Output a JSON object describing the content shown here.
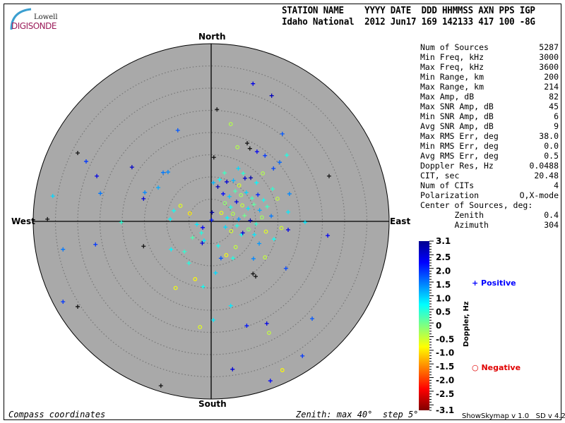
{
  "logo": {
    "line1": "Lowell",
    "line2": "DIGISONDE"
  },
  "header": {
    "labels": "STATION NAME    YYYY DATE  DDD HHMMSS AXN PPS IGP",
    "values": "Idaho National  2012 Jun17 169 142133 417 100 -8G"
  },
  "stats": [
    {
      "label": "Num of Sources",
      "value": "5287"
    },
    {
      "label": "Min Freq, kHz",
      "value": "3000"
    },
    {
      "label": "Max Freq, kHz",
      "value": "3600"
    },
    {
      "label": "Min Range, km",
      "value": "200"
    },
    {
      "label": "Max Range, km",
      "value": "214"
    },
    {
      "label": "Max Amp, dB",
      "value": "82"
    },
    {
      "label": "Max SNR Amp, dB",
      "value": "45"
    },
    {
      "label": "Min SNR Amp, dB",
      "value": "6"
    },
    {
      "label": "Avg SNR Amp, dB",
      "value": "9"
    },
    {
      "label": "Max RMS Err, deg",
      "value": "38.0"
    },
    {
      "label": "Min RMS Err, deg",
      "value": "0.0"
    },
    {
      "label": "Avg RMS Err, deg",
      "value": "0.5"
    },
    {
      "label": "Doppler Res, Hz",
      "value": "0.0488"
    },
    {
      "label": "CIT, sec",
      "value": "20.48"
    },
    {
      "label": "Num of CITs",
      "value": "4"
    },
    {
      "label": "Polarization",
      "value": "O,X-mode"
    },
    {
      "label": "Center of Sources, deg:",
      "value": ""
    },
    {
      "label": "       Zenith",
      "value": "0.4"
    },
    {
      "label": "       Azimuth",
      "value": "304"
    }
  ],
  "footer": {
    "left": "Compass coordinates",
    "right": "Zenith: max 40°  step 5°",
    "version": "ShowSkymap v 1.0   SD v 4.2"
  },
  "chart_data": {
    "type": "scatter",
    "projection": "polar-skymap",
    "compass_labels": {
      "north": "North",
      "south": "South",
      "east": "East",
      "west": "West"
    },
    "zenith_max_deg": 40,
    "zenith_step_deg": 5,
    "grid": true,
    "point_coords": "east/north zenith components, deg",
    "colorbar": {
      "label": "Doppler, Hz",
      "range": [
        -3.1,
        3.1
      ],
      "ticks": [
        "3.1",
        "2.5",
        "2.0",
        "1.5",
        "1.0",
        "0.5",
        "0",
        "-0.5",
        "-1.0",
        "-1.5",
        "-2.0",
        "-2.5",
        "-3.1"
      ],
      "colors": [
        "#00008f",
        "#0000ff",
        "#0080ff",
        "#00ffff",
        "#80ff80",
        "#ffff00",
        "#ff8000",
        "#ff0000",
        "#800000"
      ]
    },
    "legend": {
      "positive": "Positive",
      "negative": "Negative",
      "positive_color": "#0000ff",
      "negative_color": "#e00000"
    },
    "points": [
      [
        9.4,
        31,
        2.5
      ],
      [
        13.6,
        28.3,
        2.8
      ],
      [
        1.3,
        25.2,
        null
      ],
      [
        -7.5,
        20.5,
        1.8
      ],
      [
        16,
        19.7,
        1.8
      ],
      [
        4.4,
        21.9,
        -0.3
      ],
      [
        -30,
        15.4,
        null
      ],
      [
        -28.1,
        13.5,
        2.0
      ],
      [
        -17.8,
        12.2,
        2.7
      ],
      [
        -10.8,
        11,
        1.6
      ],
      [
        -9.7,
        11.1,
        1.5
      ],
      [
        -25.7,
        10.2,
        2.5
      ],
      [
        -35.6,
        5.7,
        1.0
      ],
      [
        -24.9,
        6.3,
        1.6
      ],
      [
        -14.9,
        6.5,
        1.5
      ],
      [
        -15.2,
        5.1,
        2.6
      ],
      [
        -11.9,
        7.6,
        1.3
      ],
      [
        -36.8,
        0.5,
        null
      ],
      [
        -20.2,
        -0.2,
        0.5
      ],
      [
        -9.2,
        0.5,
        0.8
      ],
      [
        -26,
        -5.2,
        2.0
      ],
      [
        -33.3,
        -6.3,
        1.6
      ],
      [
        -15.2,
        -5.6,
        null
      ],
      [
        -33.3,
        -18.1,
        2.0
      ],
      [
        -30,
        -19.2,
        null
      ],
      [
        -11.3,
        -37,
        null
      ],
      [
        4.8,
        -33.3,
        2.6
      ],
      [
        13.3,
        -35.9,
        2.3
      ],
      [
        16,
        -33.5,
        -0.8
      ],
      [
        20.5,
        -30.3,
        2.0
      ],
      [
        22.7,
        -21.9,
        1.8
      ],
      [
        12.5,
        -23,
        2.5
      ],
      [
        16.8,
        -10.6,
        1.9
      ],
      [
        10,
        -12.4,
        null
      ],
      [
        9.4,
        -11.8,
        null
      ],
      [
        26.2,
        -3.2,
        2.4
      ],
      [
        17.3,
        -1.9,
        2.5
      ],
      [
        21.1,
        -0.2,
        0.9
      ],
      [
        17.3,
        2.1,
        0.9
      ],
      [
        17.6,
        6.2,
        1.5
      ],
      [
        26.5,
        10.2,
        null
      ],
      [
        17,
        14.9,
        0.6
      ],
      [
        15.4,
        13.3,
        1.7
      ],
      [
        12.1,
        14.8,
        2.0
      ],
      [
        14,
        11.9,
        1.9
      ],
      [
        10.3,
        15.7,
        2.4
      ],
      [
        8.1,
        17.6,
        null
      ],
      [
        8.7,
        16.4,
        null
      ],
      [
        0.6,
        14.4,
        null
      ],
      [
        5.9,
        16.7,
        -0.3
      ],
      [
        -2,
        -4.9,
        2.6
      ],
      [
        2.2,
        -8.3,
        1.8
      ],
      [
        4.9,
        -8.3,
        0.6
      ],
      [
        6.8,
        -3.0,
        0.7
      ],
      [
        9.5,
        -8.4,
        1.5
      ],
      [
        12.1,
        -8.1,
        -0.4
      ],
      [
        0.2,
        2.0,
        3.0
      ],
      [
        0.1,
        0.3,
        2.2
      ],
      [
        -1.9,
        -1.4,
        2.4
      ],
      [
        1.5,
        7.8,
        2.8
      ],
      [
        3.5,
        8.9,
        2.6
      ],
      [
        5.0,
        9.2,
        1.2
      ],
      [
        6.3,
        8.1,
        -0.5
      ],
      [
        7.6,
        9.7,
        2.7
      ],
      [
        8.9,
        9.8,
        2.9
      ],
      [
        10.2,
        8.7,
        0.8
      ],
      [
        2.7,
        6.2,
        2.3
      ],
      [
        4.1,
        5.6,
        1.1
      ],
      [
        5.4,
        6.8,
        0.3
      ],
      [
        6.7,
        5.9,
        -0.2
      ],
      [
        7.9,
        6.5,
        1.0
      ],
      [
        9.2,
        5.2,
        0.4
      ],
      [
        10.5,
        6.0,
        2.1
      ],
      [
        11.8,
        4.8,
        0.7
      ],
      [
        3.1,
        4.1,
        -0.1
      ],
      [
        4.4,
        3.2,
        0.6
      ],
      [
        5.7,
        4.4,
        2.5
      ],
      [
        7.0,
        3.6,
        -0.4
      ],
      [
        8.3,
        2.9,
        0.9
      ],
      [
        9.6,
        3.8,
        0.2
      ],
      [
        10.9,
        2.5,
        1.3
      ],
      [
        2.3,
        1.9,
        -0.6
      ],
      [
        3.6,
        0.8,
        0.8
      ],
      [
        4.9,
        1.7,
        -0.3
      ],
      [
        6.2,
        0.5,
        1.4
      ],
      [
        7.5,
        1.3,
        0.1
      ],
      [
        8.8,
        0.2,
        2.8
      ],
      [
        10.1,
        -0.6,
        0.5
      ],
      [
        11.4,
        0.9,
        -0.2
      ],
      [
        3.2,
        -1.3,
        1.0
      ],
      [
        4.5,
        -2.2,
        -0.5
      ],
      [
        5.8,
        -1.0,
        0.6
      ],
      [
        7.1,
        -2.6,
        2.6
      ],
      [
        8.4,
        -1.8,
        -0.1
      ],
      [
        9.7,
        -3.0,
        0.9
      ],
      [
        12.6,
        3.3,
        0.4
      ],
      [
        13.5,
        1.2,
        1.6
      ],
      [
        -4.8,
        1.8,
        -0.9
      ],
      [
        -3.2,
        -0.7,
        0.9
      ],
      [
        -6.9,
        3.5,
        -0.6
      ],
      [
        -8.4,
        2.4,
        0.7
      ],
      [
        -2.2,
        -2.6,
        0.6
      ],
      [
        -1.6,
        -4.3,
        0.9
      ],
      [
        1.6,
        -5.5,
        0.7
      ],
      [
        3.4,
        -7.6,
        -0.7
      ],
      [
        5.5,
        -5.8,
        -0.4
      ],
      [
        -4.2,
        -3.7,
        0.3
      ],
      [
        7.2,
        10.8,
        0.5
      ],
      [
        6.1,
        11.9,
        1.0
      ],
      [
        3.0,
        10.9,
        0.4
      ],
      [
        1.9,
        9.4,
        0.8
      ],
      [
        0.5,
        8.7,
        1.2
      ],
      [
        11.6,
        10.8,
        -0.3
      ],
      [
        13.8,
        7.3,
        0.5
      ],
      [
        14.9,
        5.1,
        -0.4
      ],
      [
        12.3,
        -2.3,
        -0.6
      ],
      [
        14.1,
        -4.0,
        0.7
      ],
      [
        15.8,
        -1.5,
        -0.5
      ],
      [
        10.8,
        -5.0,
        1.4
      ],
      [
        -6.0,
        -6.8,
        0.5
      ],
      [
        -5.0,
        -9.4,
        0.6
      ],
      [
        -9.0,
        -6.3,
        0.8
      ],
      [
        1.0,
        -11.6,
        1.0
      ],
      [
        -1.8,
        -14.7,
        0.7
      ],
      [
        -3.6,
        -13.0,
        -0.8
      ],
      [
        -8.0,
        -15.0,
        -0.7
      ],
      [
        0.5,
        -22.2,
        0.9
      ],
      [
        -2.5,
        -23.8,
        -0.6
      ],
      [
        8.0,
        -23.5,
        2.2
      ],
      [
        13.0,
        -25.1,
        -0.4
      ],
      [
        4.4,
        -19.0,
        0.9
      ]
    ]
  }
}
